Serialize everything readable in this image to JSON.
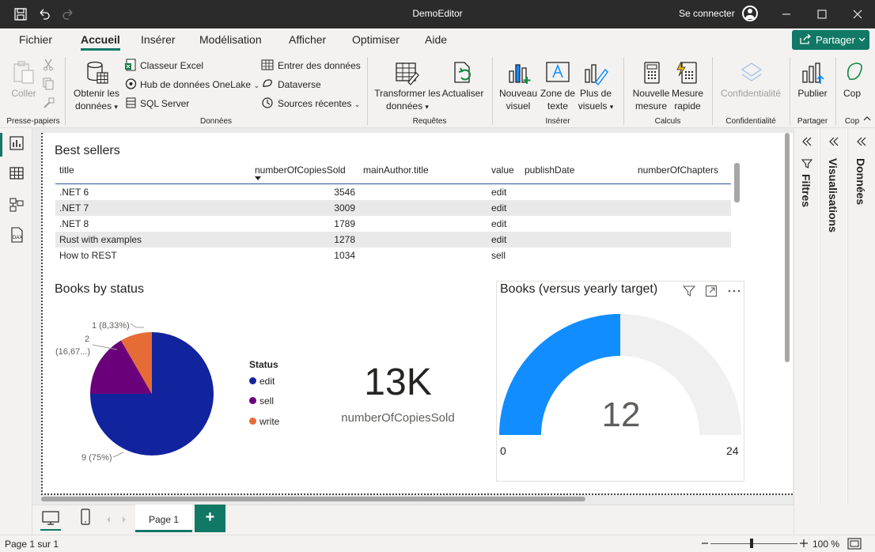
{
  "window": {
    "title": "DemoEditor",
    "sign_in": "Se connecter"
  },
  "menu": {
    "tabs": [
      "Fichier",
      "Accueil",
      "Insérer",
      "Modélisation",
      "Afficher",
      "Optimiser",
      "Aide"
    ],
    "active": "Accueil",
    "share_label": "Partager"
  },
  "ribbon": {
    "paste": "Coller",
    "clipboard_group": "Presse-papiers",
    "get_data": [
      "Obtenir les",
      "données"
    ],
    "excel": "Classeur Excel",
    "onelake": "Hub de données OneLake",
    "sql": "SQL Server",
    "enter_data": "Entrer des données",
    "dataverse": "Dataverse",
    "recent_sources": "Sources récentes",
    "data_group": "Données",
    "transform": [
      "Transformer les",
      "données"
    ],
    "refresh": "Actualiser",
    "queries_group": "Requêtes",
    "new_visual": [
      "Nouveau",
      "visuel"
    ],
    "text_box": [
      "Zone de",
      "texte"
    ],
    "more_visuals": [
      "Plus de",
      "visuels"
    ],
    "insert_group": "Insérer",
    "new_measure": [
      "Nouvelle",
      "mesure"
    ],
    "quick_measure": [
      "Mesure",
      "rapide"
    ],
    "calc_group": "Calculs",
    "sensitivity": "Confidentialité",
    "sensitivity_group": "Confidentialité",
    "publish": "Publier",
    "share_group": "Partager",
    "copilot_short": "Cop"
  },
  "table_visual": {
    "title": "Best sellers",
    "columns": [
      "title",
      "numberOfCopiesSold",
      "mainAuthor.title",
      "value",
      "publishDate",
      "numberOfChapters"
    ],
    "rows": [
      {
        "title": ".NET 6",
        "copies": "3546",
        "value": "edit"
      },
      {
        "title": ".NET 7",
        "copies": "3009",
        "value": "edit"
      },
      {
        "title": ".NET 8",
        "copies": "1789",
        "value": "edit"
      },
      {
        "title": "Rust with examples",
        "copies": "1278",
        "value": "edit"
      },
      {
        "title": "How to REST",
        "copies": "1034",
        "value": "sell"
      }
    ]
  },
  "pie_visual": {
    "title": "Books by status",
    "legend_title": "Status",
    "labels": {
      "small": "1 (8,33%)",
      "medium_line1": "2",
      "medium_line2": "(16,67...)",
      "large": "9 (75%)"
    }
  },
  "kpi_visual": {
    "value": "13K",
    "label": "numberOfCopiesSold"
  },
  "gauge_visual": {
    "title": "Books (versus yearly target)",
    "value_label": "12",
    "min_label": "0",
    "max_label": "24"
  },
  "chart_data": [
    {
      "type": "pie",
      "title": "Books by status",
      "categories": [
        "edit",
        "sell",
        "write"
      ],
      "values": [
        9,
        2,
        1
      ],
      "colors": [
        "#12239e",
        "#6b007b",
        "#e66c37"
      ],
      "legend": "right"
    },
    {
      "type": "gauge",
      "title": "Books (versus yearly target)",
      "value": 12,
      "min": 0,
      "max": 24,
      "colors": [
        "#118dff",
        "#f0f0f0"
      ]
    }
  ],
  "panes": {
    "filters": "Filtres",
    "visualizations": "Visualisations",
    "data": "Données"
  },
  "pages": {
    "tab": "Page 1",
    "add": "+"
  },
  "status": {
    "page_info": "Page 1 sur 1",
    "zoom": "100 %"
  }
}
